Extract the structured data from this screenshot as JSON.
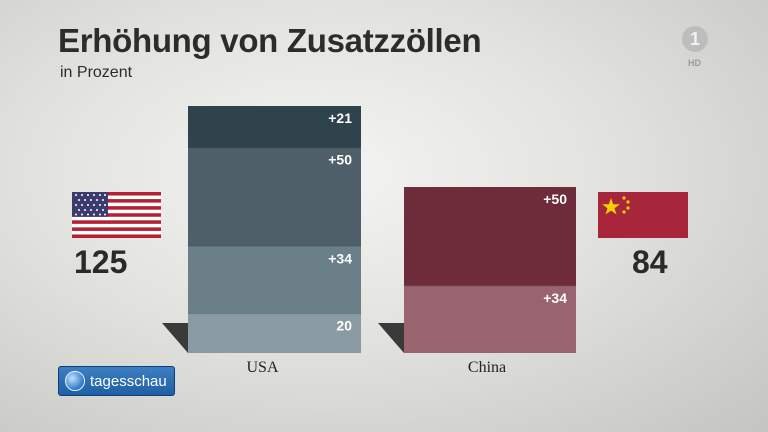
{
  "title": "Erhöhung von Zusatzzöllen",
  "subtitle": "in Prozent",
  "watermark": {
    "hd": "HD"
  },
  "brand": {
    "text": "tagesschau"
  },
  "left": {
    "country": "USA",
    "total": "125",
    "flag": "us-flag-icon"
  },
  "right": {
    "country": "China",
    "total": "84",
    "flag": "cn-flag-icon"
  },
  "colors": {
    "usa": [
      "#8a9aa3",
      "#6b7f88",
      "#4e5f69",
      "#2f434d"
    ],
    "china": [
      "#9a6370",
      "#6e2b3a"
    ]
  },
  "chart_data": {
    "type": "bar",
    "stacked": true,
    "categories": [
      "USA",
      "China"
    ],
    "series": [
      {
        "category": "USA",
        "segments": [
          {
            "value": 20,
            "label": "20"
          },
          {
            "value": 34,
            "label": "+34"
          },
          {
            "value": 50,
            "label": "+50"
          },
          {
            "value": 21,
            "label": "+21"
          }
        ]
      },
      {
        "category": "China",
        "segments": [
          {
            "value": 34,
            "label": "+34"
          },
          {
            "value": 50,
            "label": "+50"
          }
        ]
      }
    ],
    "totals": [
      125,
      84
    ],
    "ylim": [
      0,
      125
    ]
  }
}
